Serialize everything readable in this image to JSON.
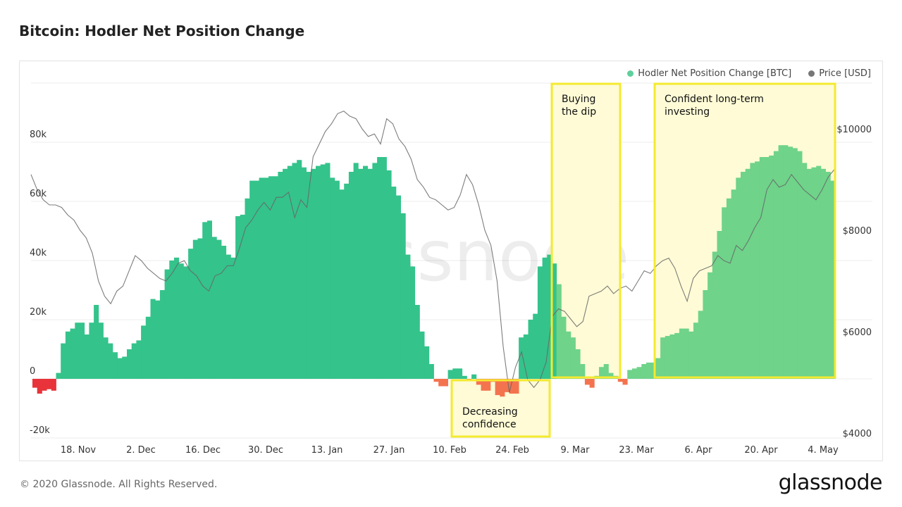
{
  "title": "Bitcoin: Hodler Net Position Change",
  "legend": [
    {
      "label": "Hodler Net Position Change [BTC]",
      "color": "#5fcf9c"
    },
    {
      "label": "Price [USD]",
      "color": "#777777"
    }
  ],
  "footer": "© 2020 Glassnode. All Rights Reserved.",
  "brand": "glassnode",
  "watermark": "glassnode",
  "chart_data": {
    "type": "bar",
    "x_ticks": [
      "18. Nov",
      "2. Dec",
      "16. Dec",
      "30. Dec",
      "13. Jan",
      "27. Jan",
      "10. Feb",
      "24. Feb",
      "9. Mar",
      "23. Mar",
      "6. Apr",
      "20. Apr",
      "4. May"
    ],
    "y_left_ticks": [
      "80k",
      "60k",
      "40k",
      "20k",
      "0",
      "-20k"
    ],
    "y_right_ticks": [
      "$10000",
      "$8000",
      "$6000",
      "$4000"
    ],
    "ylim_left": [
      -20000,
      100000
    ],
    "ylim_right": [
      4000,
      11000
    ],
    "hodler_net_position_change_btc": [
      -3000,
      -5000,
      -4000,
      -3500,
      -4000,
      2000,
      12000,
      16000,
      17000,
      19000,
      19000,
      15000,
      19000,
      25000,
      19000,
      14000,
      12000,
      9000,
      7000,
      7500,
      10000,
      12000,
      13000,
      18000,
      21000,
      27000,
      26500,
      30000,
      37000,
      40000,
      41000,
      39000,
      38000,
      44000,
      47000,
      47500,
      53000,
      53500,
      48000,
      47000,
      45000,
      42000,
      41000,
      55000,
      55500,
      61000,
      67000,
      67000,
      68000,
      68000,
      68500,
      68500,
      70000,
      71000,
      72000,
      73000,
      74000,
      71500,
      70000,
      71000,
      72000,
      72500,
      73000,
      68000,
      67000,
      64000,
      66000,
      70000,
      73000,
      71000,
      72000,
      71000,
      73000,
      75000,
      75000,
      70500,
      65000,
      62000,
      56000,
      42000,
      38000,
      25000,
      16000,
      11000,
      5000,
      -1000,
      -2500,
      -2500,
      3000,
      3500,
      3500,
      1000,
      -500,
      1500,
      -2000,
      -4000,
      -4000,
      -1000,
      -5500,
      -6000,
      -4500,
      -5000,
      -5000,
      14000,
      15000,
      20000,
      22000,
      38000,
      41000,
      42000,
      39000,
      32000,
      21000,
      16000,
      14000,
      10000,
      5000,
      -2000,
      -3000,
      1000,
      4000,
      5000,
      2000,
      1000,
      -1000,
      -2000,
      3000,
      3500,
      4000,
      5000,
      5500,
      5500,
      7000,
      14000,
      14500,
      15000,
      15500,
      17000,
      17000,
      16000,
      19000,
      23000,
      30000,
      36000,
      43000,
      50000,
      58000,
      61000,
      64000,
      68000,
      70000,
      71000,
      73000,
      73500,
      75000,
      75000,
      75500,
      77000,
      79000,
      79000,
      78500,
      78000,
      77000,
      73000,
      71000,
      71500,
      72000,
      71000,
      70000,
      67000
    ],
    "price_usd": [
      9100,
      8800,
      8600,
      8500,
      8500,
      8450,
      8300,
      8200,
      8000,
      7850,
      7550,
      7000,
      6700,
      6550,
      6800,
      6900,
      7200,
      7500,
      7400,
      7250,
      7150,
      7050,
      7000,
      7150,
      7350,
      7400,
      7200,
      7100,
      6900,
      6800,
      7100,
      7150,
      7300,
      7300,
      7650,
      8050,
      8200,
      8400,
      8550,
      8400,
      8650,
      8650,
      8750,
      8250,
      8600,
      8450,
      9450,
      9700,
      9950,
      10100,
      10300,
      10350,
      10250,
      10200,
      10000,
      9850,
      9900,
      9700,
      10200,
      10100,
      9800,
      9650,
      9400,
      9000,
      8850,
      8650,
      8600,
      8500,
      8400,
      8450,
      8700,
      9100,
      8900,
      8500,
      8000,
      7700,
      7000,
      5700,
      4800,
      5300,
      5600,
      5050,
      4900,
      5050,
      5400,
      6300,
      6450,
      6400,
      6250,
      6100,
      6200,
      6700,
      6750,
      6800,
      6900,
      6750,
      6850,
      6900,
      6800,
      7000,
      7200,
      7150,
      7300,
      7400,
      7450,
      7250,
      6900,
      6600,
      7050,
      7200,
      7250,
      7300,
      7500,
      7400,
      7350,
      7700,
      7600,
      7800,
      8050,
      8250,
      8800,
      9000,
      8850,
      8900,
      9100,
      8950,
      8800,
      8700,
      8600,
      8800,
      9050,
      9200
    ]
  }
}
